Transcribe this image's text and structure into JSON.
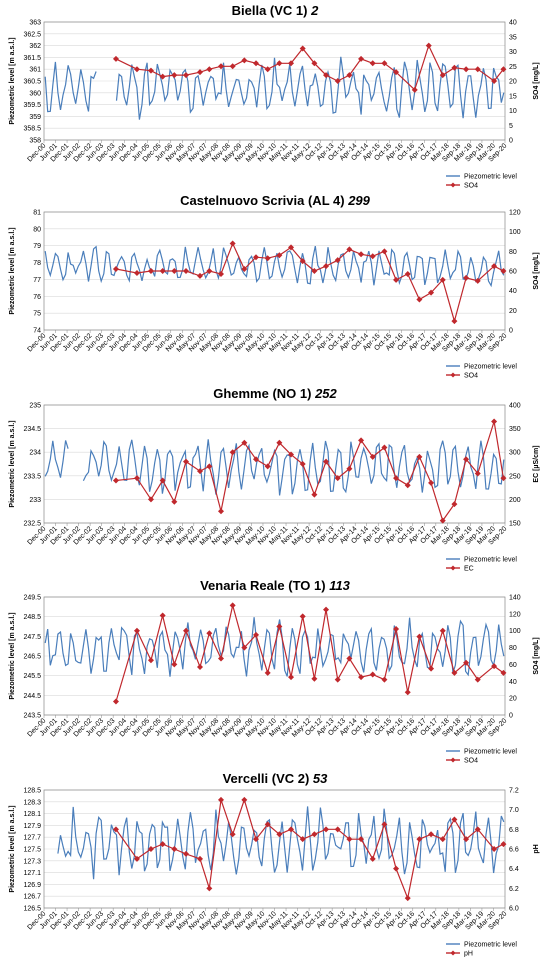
{
  "chart_data": [
    {
      "type": "line",
      "title": "Biella (VC 1)",
      "title_suffix": "2",
      "ylabel": "Piezometric level [m a.s.l.]",
      "y2label": "SO4 [mg/L]",
      "ylim": [
        358,
        363
      ],
      "yticks": [
        "358",
        "358.5",
        "359",
        "359.5",
        "360",
        "360.5",
        "361",
        "361.5",
        "362",
        "362.5",
        "363"
      ],
      "y2lim": [
        0,
        40
      ],
      "y2ticks": [
        "0",
        "5",
        "10",
        "15",
        "20",
        "25",
        "30",
        "35",
        "40"
      ],
      "xlim": [
        2000.917,
        2020.667
      ],
      "xticks": [
        "Dec-00",
        "Jun-01",
        "Dec-01",
        "Jun-02",
        "Dec-02",
        "Jun-03",
        "Dec-03",
        "Jun-04",
        "Dec-04",
        "Jun-05",
        "Dec-05",
        "Jun-06",
        "Nov-06",
        "May-07",
        "Nov-07",
        "May-08",
        "Nov-08",
        "May-09",
        "Nov-09",
        "May-10",
        "Nov-10",
        "May-11",
        "Nov-11",
        "May-12",
        "Oct-12",
        "Apr-13",
        "Oct-13",
        "Apr-14",
        "Oct-14",
        "Apr-15",
        "Oct-15",
        "Apr-16",
        "Oct-16",
        "Apr-17",
        "Oct-17",
        "Mar-18",
        "Sep-18",
        "Mar-19",
        "Sep-19",
        "Mar-20",
        "Sep-20"
      ],
      "legend_position": "bottom-right",
      "series": [
        {
          "name": "Piezometric level",
          "axis": "left",
          "color": "#4a7ebb",
          "gaps": [
            [
              2003.2,
              2004.0
            ]
          ],
          "piece_count": 180,
          "seed": 11,
          "base": 360.2,
          "amp": 1.2
        },
        {
          "name": "SO4",
          "axis": "right",
          "color": "#c0282d",
          "marker": "diamond",
          "x": [
            2004.0,
            2004.9,
            2005.5,
            2006.0,
            2006.5,
            2007.0,
            2007.6,
            2008.0,
            2008.5,
            2009.0,
            2009.5,
            2010.0,
            2010.5,
            2011.0,
            2011.5,
            2012.0,
            2012.5,
            2013.0,
            2013.5,
            2014.0,
            2014.5,
            2015.0,
            2015.5,
            2016.0,
            2016.8,
            2017.4,
            2018.0,
            2018.5,
            2019.0,
            2019.5,
            2020.2,
            2020.6
          ],
          "y": [
            27.5,
            24,
            23.5,
            21.5,
            22,
            22,
            23,
            24,
            25,
            25,
            27,
            26,
            24,
            26,
            26,
            31,
            26,
            22,
            20,
            22,
            27.5,
            26,
            26,
            23,
            17,
            32,
            22,
            24.5,
            24,
            24,
            20,
            24
          ]
        }
      ]
    },
    {
      "type": "line",
      "title": "Castelnuovo Scrivia (AL 4)",
      "title_suffix": "299",
      "ylabel": "Piezometric level [m a.s.l.]",
      "y2label": "SO4 [mg/L]",
      "ylim": [
        74,
        81
      ],
      "yticks": [
        "74",
        "75",
        "76",
        "77",
        "78",
        "79",
        "80",
        "81"
      ],
      "y2lim": [
        0,
        120
      ],
      "y2ticks": [
        "0",
        "20",
        "40",
        "60",
        "80",
        "100",
        "120"
      ],
      "xlim": [
        2000.917,
        2020.667
      ],
      "xticks": [
        "Dec-00",
        "Jun-01",
        "Dec-01",
        "Jun-02",
        "Dec-02",
        "Jun-03",
        "Dec-03",
        "Jun-04",
        "Dec-04",
        "Jun-05",
        "Dec-05",
        "Jun-06",
        "Nov-06",
        "May-07",
        "Nov-07",
        "May-08",
        "Nov-08",
        "May-09",
        "Nov-09",
        "May-10",
        "Nov-10",
        "May-11",
        "Nov-11",
        "May-12",
        "Oct-12",
        "Apr-13",
        "Oct-13",
        "Apr-14",
        "Oct-14",
        "Apr-15",
        "Oct-15",
        "Apr-16",
        "Oct-16",
        "Apr-17",
        "Oct-17",
        "Mar-18",
        "Sep-18",
        "Mar-19",
        "Sep-19",
        "Mar-20",
        "Sep-20"
      ],
      "legend_position": "bottom-right",
      "series": [
        {
          "name": "Piezometric level",
          "axis": "left",
          "color": "#4a7ebb",
          "gaps": [],
          "piece_count": 180,
          "seed": 23,
          "base": 77.8,
          "amp": 1.1
        },
        {
          "name": "SO4",
          "axis": "right",
          "color": "#c0282d",
          "marker": "diamond",
          "x": [
            2004.0,
            2004.9,
            2005.5,
            2006.0,
            2006.5,
            2007.0,
            2007.6,
            2008.0,
            2008.5,
            2009.0,
            2009.5,
            2010.0,
            2010.5,
            2011.0,
            2011.5,
            2012.0,
            2012.5,
            2013.0,
            2013.5,
            2014.0,
            2014.5,
            2015.0,
            2015.5,
            2016.0,
            2016.5,
            2017.0,
            2017.5,
            2018.0,
            2018.5,
            2019.0,
            2019.5,
            2020.2,
            2020.6
          ],
          "y": [
            62,
            58,
            60,
            60,
            60,
            60,
            55,
            60,
            57,
            88,
            62,
            74,
            73,
            76,
            84,
            70,
            60,
            65,
            71,
            82,
            77,
            75,
            80,
            51,
            57,
            31,
            38,
            51,
            9,
            53,
            50,
            65,
            60
          ]
        }
      ]
    },
    {
      "type": "line",
      "title": "Ghemme (NO 1)",
      "title_suffix": "252",
      "ylabel": "Piezometric level [m a.s.l.]",
      "y2label": "EC [µS/cm]",
      "ylim": [
        232.5,
        235
      ],
      "yticks": [
        "232.5",
        "233",
        "233.5",
        "234",
        "234.5",
        "235"
      ],
      "y2lim": [
        150,
        400
      ],
      "y2ticks": [
        "150",
        "200",
        "250",
        "300",
        "350",
        "400"
      ],
      "xlim": [
        2000.917,
        2020.667
      ],
      "xticks": [
        "Dec-00",
        "Jun-01",
        "Dec-01",
        "Jun-02",
        "Dec-02",
        "Jun-03",
        "Dec-03",
        "Jun-04",
        "Dec-04",
        "Jun-05",
        "Dec-05",
        "Jun-06",
        "Nov-06",
        "May-07",
        "Nov-07",
        "May-08",
        "Nov-08",
        "May-09",
        "Nov-09",
        "May-10",
        "Nov-10",
        "May-11",
        "Nov-11",
        "May-12",
        "Oct-12",
        "Apr-13",
        "Oct-13",
        "Apr-14",
        "Oct-14",
        "Apr-15",
        "Oct-15",
        "Apr-16",
        "Oct-16",
        "Apr-17",
        "Oct-17",
        "Mar-18",
        "Sep-18",
        "Mar-19",
        "Sep-19",
        "Mar-20",
        "Sep-20"
      ],
      "legend_position": "bottom-right",
      "series": [
        {
          "name": "Piezometric level",
          "axis": "left",
          "color": "#4a7ebb",
          "gaps": [
            [
              2002.0,
              2002.5
            ]
          ],
          "piece_count": 180,
          "seed": 37,
          "base": 233.7,
          "amp": 0.55
        },
        {
          "name": "EC",
          "axis": "right",
          "color": "#c0282d",
          "marker": "diamond",
          "x": [
            2004.0,
            2004.9,
            2005.5,
            2006.0,
            2006.5,
            2007.0,
            2007.6,
            2008.0,
            2008.5,
            2009.0,
            2009.5,
            2010.0,
            2010.5,
            2011.0,
            2011.5,
            2012.0,
            2012.5,
            2013.0,
            2013.5,
            2014.0,
            2014.5,
            2015.0,
            2015.5,
            2016.0,
            2016.5,
            2017.0,
            2017.5,
            2018.0,
            2018.5,
            2019.0,
            2019.5,
            2020.2,
            2020.6
          ],
          "y": [
            240,
            245,
            200,
            240,
            195,
            280,
            260,
            270,
            175,
            300,
            320,
            285,
            270,
            320,
            295,
            275,
            210,
            280,
            245,
            265,
            325,
            290,
            310,
            245,
            230,
            290,
            235,
            155,
            190,
            285,
            255,
            365,
            245
          ]
        }
      ]
    },
    {
      "type": "line",
      "title": "Venaria Reale (TO 1)",
      "title_suffix": "113",
      "ylabel": "Piezometric level [m a.s.l.]",
      "y2label": "SO4 [mg/L]",
      "ylim": [
        243.5,
        249.5
      ],
      "yticks": [
        "243.5",
        "244.5",
        "245.5",
        "246.5",
        "247.5",
        "248.5",
        "249.5"
      ],
      "y2lim": [
        0,
        140
      ],
      "y2ticks": [
        "0",
        "20",
        "40",
        "60",
        "80",
        "100",
        "120",
        "140"
      ],
      "xlim": [
        2000.917,
        2020.667
      ],
      "xticks": [
        "Dec-00",
        "Jun-01",
        "Dec-01",
        "Jun-02",
        "Dec-02",
        "Jun-03",
        "Dec-03",
        "Jun-04",
        "Dec-04",
        "Jun-05",
        "Dec-05",
        "Jun-06",
        "Nov-06",
        "May-07",
        "Nov-07",
        "May-08",
        "Nov-08",
        "May-09",
        "Nov-09",
        "May-10",
        "Nov-10",
        "May-11",
        "Nov-11",
        "May-12",
        "Oct-12",
        "Apr-13",
        "Oct-13",
        "Apr-14",
        "Oct-14",
        "Apr-15",
        "Oct-15",
        "Apr-16",
        "Oct-16",
        "Apr-17",
        "Oct-17",
        "Mar-18",
        "Sep-18",
        "Mar-19",
        "Sep-19",
        "Mar-20",
        "Sep-20"
      ],
      "legend_position": "bottom-right",
      "series": [
        {
          "name": "Piezometric level",
          "axis": "left",
          "color": "#4a7ebb",
          "gaps": [],
          "piece_count": 180,
          "seed": 53,
          "base": 246.9,
          "amp": 1.4
        },
        {
          "name": "SO4",
          "axis": "right",
          "color": "#c0282d",
          "marker": "diamond",
          "x": [
            2004.0,
            2004.9,
            2005.5,
            2006.0,
            2006.5,
            2007.0,
            2007.6,
            2008.0,
            2008.5,
            2009.0,
            2009.5,
            2010.0,
            2010.5,
            2011.0,
            2011.5,
            2012.0,
            2012.5,
            2013.0,
            2013.5,
            2014.0,
            2014.5,
            2015.0,
            2015.5,
            2016.0,
            2016.5,
            2017.0,
            2017.5,
            2018.0,
            2018.5,
            2019.0,
            2019.5,
            2020.2,
            2020.6
          ],
          "y": [
            16,
            100,
            65,
            118,
            60,
            100,
            57,
            97,
            67,
            130,
            80,
            95,
            50,
            105,
            45,
            117,
            43,
            125,
            42,
            67,
            45,
            48,
            42,
            102,
            27,
            93,
            55,
            100,
            50,
            62,
            42,
            58,
            50
          ]
        }
      ]
    },
    {
      "type": "line",
      "title": "Vercelli (VC 2)",
      "title_suffix": "53",
      "ylabel": "Piezometric level [m a.s.l.]",
      "y2label": "pH",
      "ylim": [
        126.5,
        128.5
      ],
      "yticks": [
        "126.5",
        "126.7",
        "126.9",
        "127.1",
        "127.3",
        "127.5",
        "127.7",
        "127.9",
        "128.1",
        "128.3",
        "128.5"
      ],
      "y2lim": [
        6.0,
        7.2
      ],
      "y2ticks": [
        "6.0",
        "6.2",
        "6.4",
        "6.6",
        "6.8",
        "7.0",
        "7.2"
      ],
      "xlim": [
        2000.917,
        2020.667
      ],
      "xticks": [
        "Dec-00",
        "Jun-01",
        "Dec-01",
        "Jun-02",
        "Dec-02",
        "Jun-03",
        "Dec-03",
        "Jun-04",
        "Dec-04",
        "Jun-05",
        "Dec-05",
        "Jun-06",
        "Nov-06",
        "May-07",
        "Nov-07",
        "May-08",
        "Nov-08",
        "May-09",
        "Nov-09",
        "May-10",
        "Nov-10",
        "May-11",
        "Nov-11",
        "May-12",
        "Oct-12",
        "Apr-13",
        "Oct-13",
        "Apr-14",
        "Oct-14",
        "Apr-15",
        "Oct-15",
        "Apr-16",
        "Oct-16",
        "Apr-17",
        "Oct-17",
        "Mar-18",
        "Sep-18",
        "Mar-19",
        "Sep-19",
        "Mar-20",
        "Sep-20"
      ],
      "legend_position": "bottom-right",
      "series": [
        {
          "name": "Piezometric level",
          "axis": "left",
          "color": "#4a7ebb",
          "gaps": [
            [
              2001.0,
              2001.5
            ]
          ],
          "piece_count": 180,
          "seed": 71,
          "base": 127.6,
          "amp": 0.55
        },
        {
          "name": "pH",
          "axis": "right",
          "color": "#c0282d",
          "marker": "diamond",
          "x": [
            2004.0,
            2004.9,
            2005.5,
            2006.0,
            2006.5,
            2007.0,
            2007.6,
            2008.0,
            2008.5,
            2009.0,
            2009.5,
            2010.0,
            2010.5,
            2011.0,
            2011.5,
            2012.0,
            2012.5,
            2013.0,
            2013.5,
            2014.0,
            2014.5,
            2015.0,
            2015.5,
            2016.0,
            2016.5,
            2017.0,
            2017.5,
            2018.0,
            2018.5,
            2019.0,
            2019.5,
            2020.2,
            2020.6
          ],
          "y": [
            6.8,
            6.5,
            6.6,
            6.65,
            6.6,
            6.55,
            6.5,
            6.2,
            7.1,
            6.75,
            7.1,
            6.7,
            6.85,
            6.75,
            6.8,
            6.7,
            6.75,
            6.8,
            6.8,
            6.7,
            6.7,
            6.5,
            6.85,
            6.4,
            6.1,
            6.7,
            6.75,
            6.7,
            6.9,
            6.7,
            6.8,
            6.6,
            6.65
          ]
        }
      ]
    }
  ]
}
